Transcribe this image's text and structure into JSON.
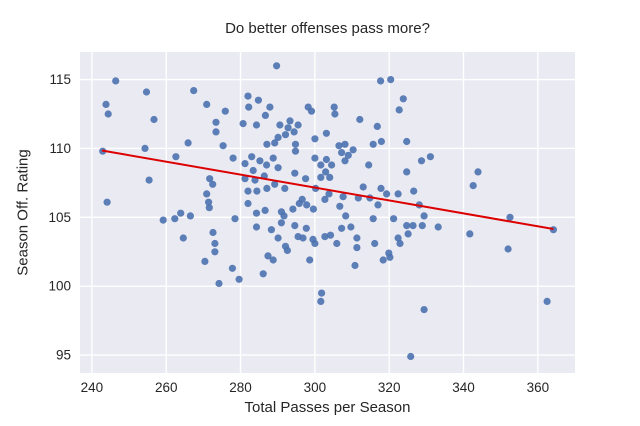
{
  "chart_data": {
    "type": "scatter",
    "title": "Do better offenses pass more?",
    "xlabel": "Total Passes per Season",
    "ylabel": "Season Off. Rating",
    "xlim": [
      236.8,
      370.0
    ],
    "ylim": [
      93.7,
      117.0
    ],
    "xticks": [
      240,
      260,
      280,
      300,
      320,
      340,
      360
    ],
    "yticks": [
      95,
      100,
      105,
      110,
      115
    ],
    "grid": true,
    "legend": "none",
    "style": "seaborn-darkgrid",
    "colors": {
      "point": "#4c72b0",
      "regression_line": "#dd0000",
      "plot_background": "#eaeaf2",
      "grid_line": "#ffffff",
      "text": "#262626",
      "figure_background": "#ffffff"
    },
    "regression_line": {
      "x1": 242.7,
      "y1": 109.85,
      "x2": 364.2,
      "y2": 104.15
    },
    "points": [
      [
        246.4,
        114.9
      ],
      [
        254.7,
        114.1
      ],
      [
        243.8,
        113.2
      ],
      [
        244.4,
        112.5
      ],
      [
        267.4,
        114.2
      ],
      [
        270.9,
        113.2
      ],
      [
        275.9,
        112.7
      ],
      [
        256.7,
        112.1
      ],
      [
        273.4,
        111.9
      ],
      [
        280.7,
        111.8
      ],
      [
        273.4,
        111.2
      ],
      [
        265.9,
        110.4
      ],
      [
        275.3,
        110.2
      ],
      [
        242.9,
        109.8
      ],
      [
        254.3,
        110.0
      ],
      [
        278.0,
        109.3
      ],
      [
        262.6,
        109.4
      ],
      [
        255.4,
        107.7
      ],
      [
        271.7,
        107.8
      ],
      [
        272.5,
        107.4
      ],
      [
        270.9,
        106.7
      ],
      [
        271.4,
        106.1
      ],
      [
        244.1,
        106.1
      ],
      [
        271.6,
        105.7
      ],
      [
        263.9,
        105.3
      ],
      [
        266.5,
        105.1
      ],
      [
        289.7,
        116.0
      ],
      [
        317.7,
        114.9
      ],
      [
        320.4,
        115.0
      ],
      [
        282.0,
        113.8
      ],
      [
        284.8,
        113.5
      ],
      [
        282.2,
        113.0
      ],
      [
        287.9,
        113.0
      ],
      [
        298.2,
        113.0
      ],
      [
        299.1,
        112.7
      ],
      [
        305.2,
        113.0
      ],
      [
        286.7,
        112.4
      ],
      [
        305.4,
        112.5
      ],
      [
        284.3,
        111.7
      ],
      [
        290.6,
        111.7
      ],
      [
        293.3,
        112.0
      ],
      [
        295.5,
        111.7
      ],
      [
        292.8,
        111.5
      ],
      [
        312.1,
        112.1
      ],
      [
        316.8,
        111.6
      ],
      [
        292.1,
        111.0
      ],
      [
        294.4,
        111.2
      ],
      [
        290.1,
        110.8
      ],
      [
        300.0,
        110.7
      ],
      [
        303.1,
        111.1
      ],
      [
        287.1,
        110.3
      ],
      [
        289.2,
        110.4
      ],
      [
        294.8,
        110.3
      ],
      [
        294.8,
        109.8
      ],
      [
        306.5,
        110.2
      ],
      [
        308.1,
        110.3
      ],
      [
        310.3,
        109.9
      ],
      [
        307.2,
        109.7
      ],
      [
        315.7,
        110.3
      ],
      [
        317.9,
        110.5
      ],
      [
        283.0,
        109.4
      ],
      [
        285.2,
        109.1
      ],
      [
        288.8,
        109.3
      ],
      [
        287.0,
        108.8
      ],
      [
        290.1,
        108.6
      ],
      [
        283.4,
        108.4
      ],
      [
        281.2,
        108.9
      ],
      [
        300.0,
        109.3
      ],
      [
        303.1,
        109.2
      ],
      [
        304.5,
        108.8
      ],
      [
        301.6,
        108.8
      ],
      [
        308.1,
        109.1
      ],
      [
        309.0,
        109.5
      ],
      [
        314.5,
        108.8
      ],
      [
        302.9,
        108.3
      ],
      [
        304.0,
        107.9
      ],
      [
        301.6,
        107.9
      ],
      [
        294.6,
        108.2
      ],
      [
        297.5,
        107.8
      ],
      [
        286.4,
        108.0
      ],
      [
        283.9,
        107.7
      ],
      [
        281.2,
        107.8
      ],
      [
        289.2,
        107.4
      ],
      [
        291.9,
        107.1
      ],
      [
        287.1,
        107.1
      ],
      [
        284.4,
        106.9
      ],
      [
        282.0,
        106.9
      ],
      [
        300.2,
        107.1
      ],
      [
        303.8,
        106.7
      ],
      [
        302.7,
        106.3
      ],
      [
        296.6,
        106.3
      ],
      [
        295.8,
        106.0
      ],
      [
        297.8,
        105.9
      ],
      [
        299.6,
        105.6
      ],
      [
        294.1,
        105.6
      ],
      [
        291.0,
        105.4
      ],
      [
        286.6,
        105.5
      ],
      [
        284.3,
        105.3
      ],
      [
        282.0,
        106.0
      ],
      [
        306.7,
        105.8
      ],
      [
        311.7,
        106.4
      ],
      [
        313.0,
        107.2
      ],
      [
        317.8,
        107.1
      ],
      [
        319.3,
        106.7
      ],
      [
        322.4,
        106.7
      ],
      [
        308.3,
        105.1
      ],
      [
        291.7,
        105.1
      ],
      [
        324.7,
        110.5
      ],
      [
        328.7,
        109.1
      ],
      [
        331.1,
        109.4
      ],
      [
        343.9,
        108.3
      ],
      [
        342.6,
        107.3
      ],
      [
        326.6,
        106.9
      ],
      [
        328.1,
        105.9
      ],
      [
        329.4,
        105.1
      ],
      [
        323.8,
        113.6
      ],
      [
        322.7,
        112.8
      ],
      [
        324.7,
        108.3
      ],
      [
        259.2,
        104.8
      ],
      [
        262.3,
        104.9
      ],
      [
        278.5,
        104.9
      ],
      [
        264.6,
        103.5
      ],
      [
        272.6,
        103.9
      ],
      [
        273.1,
        103.1
      ],
      [
        273.1,
        102.5
      ],
      [
        270.4,
        101.8
      ],
      [
        277.8,
        101.3
      ],
      [
        274.2,
        100.2
      ],
      [
        279.6,
        100.5
      ],
      [
        315.7,
        104.9
      ],
      [
        321.2,
        104.9
      ],
      [
        284.3,
        104.3
      ],
      [
        288.3,
        104.1
      ],
      [
        291.0,
        104.6
      ],
      [
        294.6,
        104.4
      ],
      [
        295.5,
        103.6
      ],
      [
        296.8,
        103.5
      ],
      [
        297.7,
        104.2
      ],
      [
        290.1,
        103.5
      ],
      [
        292.1,
        102.9
      ],
      [
        292.6,
        102.6
      ],
      [
        287.4,
        102.2
      ],
      [
        288.8,
        101.9
      ],
      [
        286.1,
        100.9
      ],
      [
        298.6,
        101.9
      ],
      [
        300.0,
        103.1
      ],
      [
        299.5,
        103.4
      ],
      [
        302.7,
        103.6
      ],
      [
        304.2,
        103.7
      ],
      [
        305.9,
        103.1
      ],
      [
        307.2,
        104.2
      ],
      [
        309.7,
        104.3
      ],
      [
        311.3,
        103.5
      ],
      [
        311.3,
        102.8
      ],
      [
        316.1,
        103.1
      ],
      [
        310.8,
        101.5
      ],
      [
        318.4,
        101.9
      ],
      [
        319.9,
        102.4
      ],
      [
        320.2,
        102.1
      ],
      [
        322.4,
        103.5
      ],
      [
        322.9,
        103.1
      ],
      [
        324.7,
        104.4
      ],
      [
        325.1,
        103.8
      ],
      [
        301.8,
        99.5
      ],
      [
        301.6,
        98.9
      ],
      [
        326.4,
        104.4
      ],
      [
        328.9,
        104.4
      ],
      [
        333.2,
        104.3
      ],
      [
        341.7,
        103.8
      ],
      [
        352.5,
        105.0
      ],
      [
        364.2,
        104.1
      ],
      [
        352.0,
        102.7
      ],
      [
        362.5,
        98.9
      ],
      [
        329.4,
        98.3
      ],
      [
        325.8,
        94.9
      ],
      [
        317.0,
        105.9
      ],
      [
        314.8,
        106.4
      ],
      [
        307.6,
        106.5
      ]
    ]
  }
}
